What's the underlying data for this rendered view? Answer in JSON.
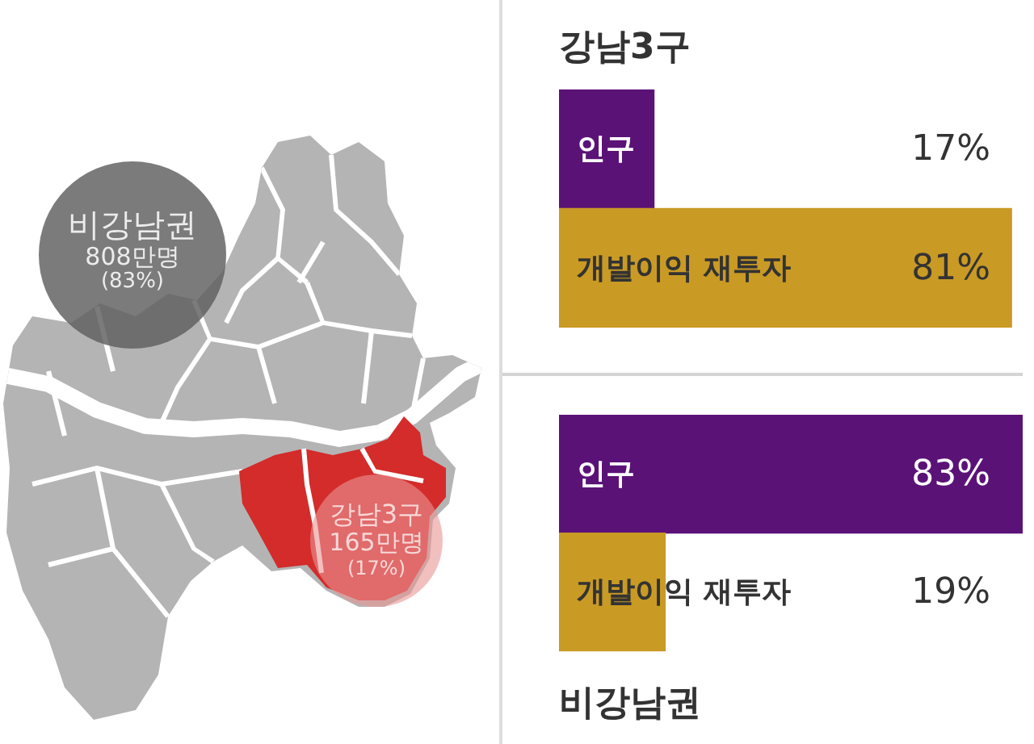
{
  "chart_data": [
    {
      "type": "other",
      "annotations": [
        "비강남권\n808만명\n(83%)",
        "강남3구\n165만명\n(17%)"
      ]
    },
    {
      "type": "bar",
      "orientation": "horizontal",
      "title": "강남3구",
      "categories": [
        "인구",
        "개발이익 재투자"
      ],
      "values": [
        17,
        81
      ],
      "colors": [
        "#5b1277",
        "#c99a24"
      ],
      "value_labels": [
        "17%",
        "81%"
      ]
    },
    {
      "type": "bar",
      "orientation": "horizontal",
      "title": "비강남권",
      "categories": [
        "인구",
        "개발이익 재투자"
      ],
      "values": [
        83,
        19
      ],
      "colors": [
        "#5b1277",
        "#c99a24"
      ],
      "value_labels": [
        "83%",
        "19%"
      ]
    }
  ]
}
